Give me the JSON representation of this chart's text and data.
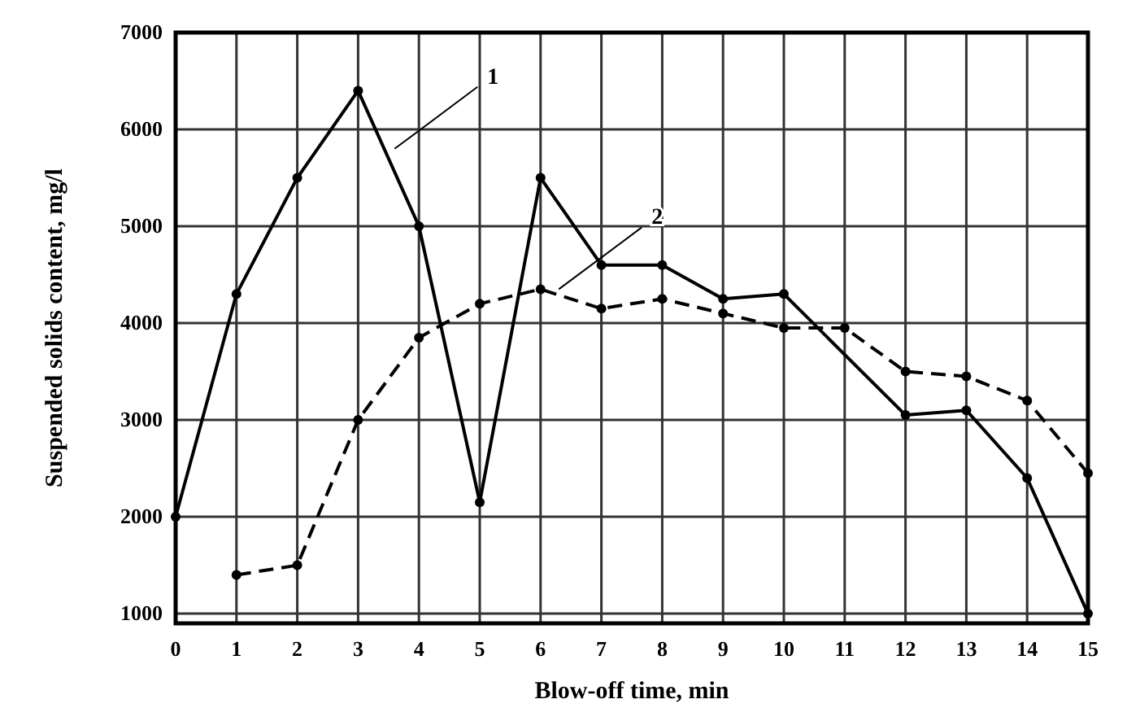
{
  "chart_data": {
    "type": "line",
    "xlabel": "Blow-off time, min",
    "ylabel": "Suspended solids content, mg/l",
    "xlim": [
      0,
      15
    ],
    "xticks": [
      0,
      1,
      2,
      3,
      4,
      5,
      6,
      7,
      8,
      9,
      10,
      11,
      12,
      13,
      14,
      15
    ],
    "ylim": [
      900,
      7000
    ],
    "yticks": [
      1000,
      2000,
      3000,
      4000,
      5000,
      6000,
      7000
    ],
    "grid": true,
    "marker": "circle",
    "series": [
      {
        "color": "#000000",
        "line_style": "solid",
        "x": [
          0,
          1,
          2,
          3,
          4,
          5,
          6,
          7,
          8,
          9,
          10,
          12,
          13,
          14,
          15
        ],
        "values": [
          2000,
          4300,
          5500,
          6400,
          5000,
          2150,
          5500,
          4600,
          4600,
          4250,
          4300,
          3050,
          3100,
          2400,
          1000
        ]
      },
      {
        "color": "#000000",
        "line_style": "dashed",
        "x": [
          1,
          2,
          3,
          4,
          5,
          6,
          7,
          8,
          9,
          10,
          11,
          12,
          13,
          14,
          15
        ],
        "values": [
          1400,
          1500,
          3000,
          3850,
          4200,
          4350,
          4150,
          4250,
          4100,
          3950,
          3950,
          3500,
          3450,
          3200,
          2450
        ]
      }
    ],
    "annotations": [
      {
        "text": "1",
        "x": 3.6,
        "y": 5800
      },
      {
        "text": "2",
        "x": 6.3,
        "y": 4350
      }
    ]
  }
}
